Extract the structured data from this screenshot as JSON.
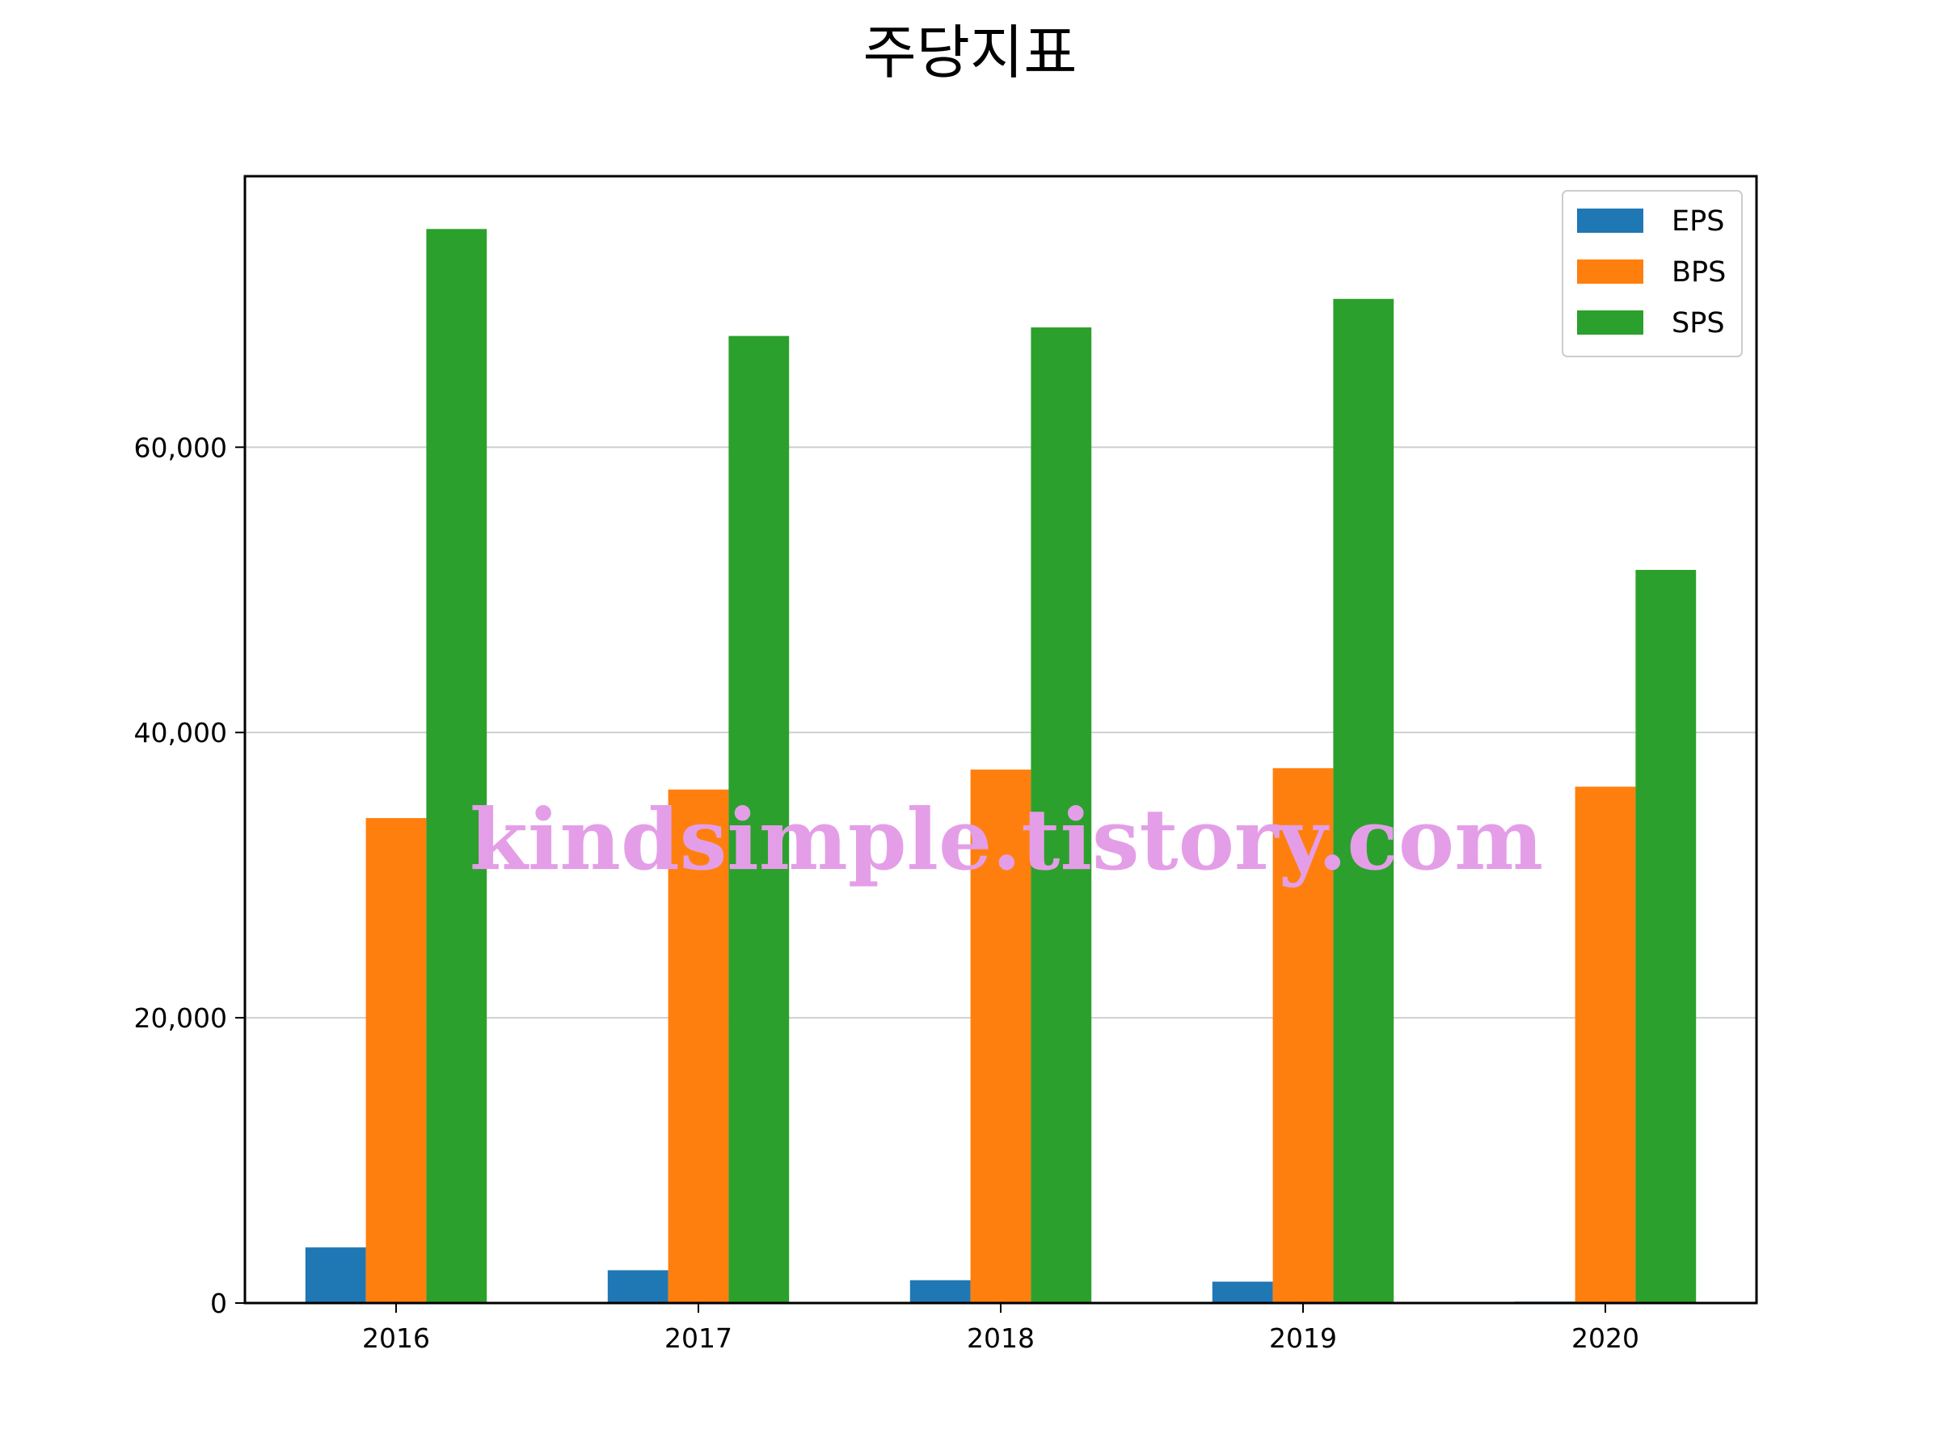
{
  "chart_data": {
    "type": "bar",
    "title": "주당지표",
    "xlabel": "",
    "ylabel": "",
    "categories": [
      "2016",
      "2017",
      "2018",
      "2019",
      "2020"
    ],
    "series": [
      {
        "name": "EPS",
        "color": "#1f77b4",
        "values": [
          3900,
          2300,
          1600,
          1500,
          100
        ]
      },
      {
        "name": "BPS",
        "color": "#ff7f0e",
        "values": [
          34000,
          36000,
          37400,
          37500,
          36200
        ]
      },
      {
        "name": "SPS",
        "color": "#2ca02c",
        "values": [
          75300,
          67800,
          68400,
          70400,
          51400
        ]
      }
    ],
    "ylim": [
      0,
      79000
    ],
    "yticks": [
      0,
      20000,
      40000,
      60000
    ],
    "ytick_labels": [
      "0",
      "20,000",
      "40,000",
      "60,000"
    ],
    "grid": "y",
    "legend_position": "top-right",
    "watermark": "kindsimple.tistory.com"
  }
}
